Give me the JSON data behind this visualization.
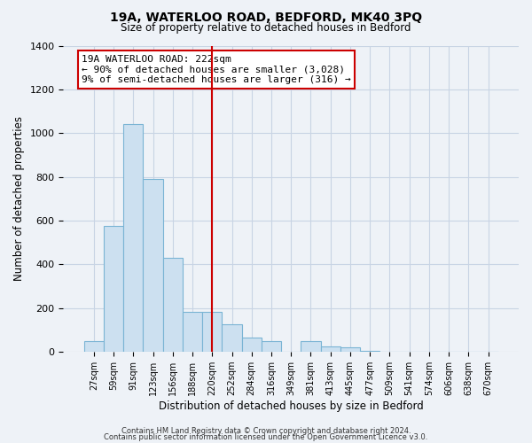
{
  "title": "19A, WATERLOO ROAD, BEDFORD, MK40 3PQ",
  "subtitle": "Size of property relative to detached houses in Bedford",
  "xlabel": "Distribution of detached houses by size in Bedford",
  "ylabel": "Number of detached properties",
  "bar_labels": [
    "27sqm",
    "59sqm",
    "91sqm",
    "123sqm",
    "156sqm",
    "188sqm",
    "220sqm",
    "252sqm",
    "284sqm",
    "316sqm",
    "349sqm",
    "381sqm",
    "413sqm",
    "445sqm",
    "477sqm",
    "509sqm",
    "541sqm",
    "574sqm",
    "606sqm",
    "638sqm",
    "670sqm"
  ],
  "bar_values": [
    50,
    575,
    1040,
    790,
    430,
    185,
    185,
    125,
    65,
    50,
    0,
    50,
    25,
    20,
    5,
    0,
    0,
    0,
    0,
    0,
    0
  ],
  "bar_color": "#cce0f0",
  "bar_edge_color": "#7ab4d4",
  "vline_x_index": 6,
  "vline_color": "#cc0000",
  "annotation_text": "19A WATERLOO ROAD: 222sqm\n← 90% of detached houses are smaller (3,028)\n9% of semi-detached houses are larger (316) →",
  "annotation_box_color": "white",
  "annotation_box_edge": "#cc0000",
  "ylim": [
    0,
    1400
  ],
  "yticks": [
    0,
    200,
    400,
    600,
    800,
    1000,
    1200,
    1400
  ],
  "footer1": "Contains HM Land Registry data © Crown copyright and database right 2024.",
  "footer2": "Contains public sector information licensed under the Open Government Licence v3.0.",
  "background_color": "#eef2f7",
  "plot_bg_color": "#eef2f7",
  "grid_color": "#c8d4e4"
}
